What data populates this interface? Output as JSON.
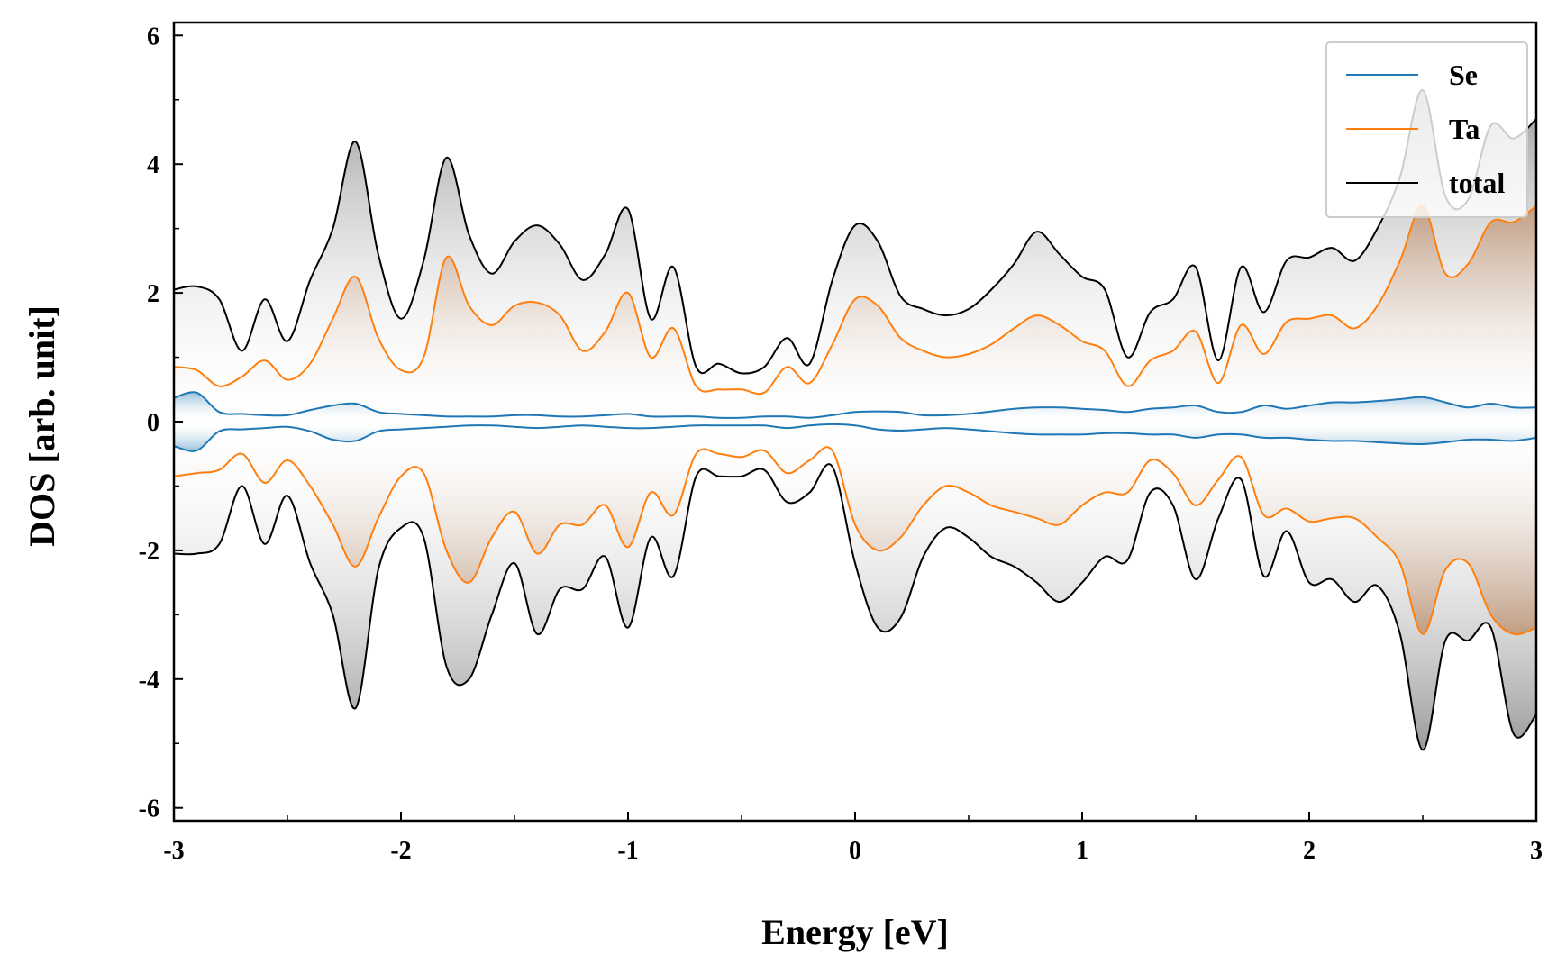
{
  "chart_data": {
    "type": "line",
    "title": "",
    "xlabel": "Energy [eV]",
    "ylabel": "DOS [arb. unit]",
    "xlim": [
      -3,
      3
    ],
    "ylim": [
      -6.2,
      6.2
    ],
    "x_ticks": [
      -3,
      -2,
      -1,
      0,
      1,
      2,
      3
    ],
    "x_tick_labels": [
      "-3",
      "-2",
      "-1",
      "0",
      "1",
      "2",
      "3"
    ],
    "y_ticks": [
      -6,
      -4,
      -2,
      0,
      2,
      4,
      6
    ],
    "y_tick_labels": [
      "-6",
      "-4",
      "-2",
      "0",
      "2",
      "4",
      "6"
    ],
    "legend_position": "top-right",
    "grid": false,
    "colors": {
      "Se": "#1f77b4",
      "Ta": "#ff7f0e",
      "total": "#000000"
    },
    "x": [
      -3.0,
      -2.9,
      -2.8,
      -2.7,
      -2.6,
      -2.5,
      -2.4,
      -2.3,
      -2.2,
      -2.1,
      -2.0,
      -1.9,
      -1.8,
      -1.7,
      -1.6,
      -1.5,
      -1.4,
      -1.3,
      -1.2,
      -1.1,
      -1.0,
      -0.9,
      -0.8,
      -0.7,
      -0.6,
      -0.5,
      -0.4,
      -0.3,
      -0.2,
      -0.1,
      0.0,
      0.1,
      0.2,
      0.3,
      0.4,
      0.5,
      0.6,
      0.7,
      0.8,
      0.9,
      1.0,
      1.1,
      1.2,
      1.3,
      1.4,
      1.5,
      1.6,
      1.7,
      1.8,
      1.9,
      2.0,
      2.1,
      2.2,
      2.3,
      2.4,
      2.5,
      2.6,
      2.7,
      2.8,
      2.9,
      3.0
    ],
    "series": [
      {
        "name": "Se",
        "up": [
          0.37,
          0.45,
          0.15,
          0.12,
          0.1,
          0.1,
          0.18,
          0.25,
          0.28,
          0.15,
          0.12,
          0.1,
          0.08,
          0.08,
          0.08,
          0.1,
          0.1,
          0.08,
          0.08,
          0.1,
          0.12,
          0.08,
          0.08,
          0.08,
          0.06,
          0.06,
          0.08,
          0.08,
          0.06,
          0.1,
          0.15,
          0.16,
          0.15,
          0.1,
          0.1,
          0.12,
          0.16,
          0.2,
          0.22,
          0.22,
          0.2,
          0.18,
          0.15,
          0.2,
          0.22,
          0.25,
          0.15,
          0.15,
          0.25,
          0.2,
          0.25,
          0.3,
          0.3,
          0.32,
          0.35,
          0.38,
          0.3,
          0.22,
          0.28,
          0.22,
          0.22
        ],
        "down": [
          -0.38,
          -0.45,
          -0.15,
          -0.12,
          -0.1,
          -0.08,
          -0.15,
          -0.28,
          -0.3,
          -0.15,
          -0.12,
          -0.1,
          -0.08,
          -0.06,
          -0.06,
          -0.08,
          -0.1,
          -0.08,
          -0.06,
          -0.08,
          -0.1,
          -0.1,
          -0.08,
          -0.06,
          -0.06,
          -0.06,
          -0.06,
          -0.1,
          -0.06,
          -0.04,
          -0.06,
          -0.12,
          -0.14,
          -0.12,
          -0.1,
          -0.12,
          -0.15,
          -0.18,
          -0.2,
          -0.2,
          -0.2,
          -0.18,
          -0.18,
          -0.2,
          -0.2,
          -0.25,
          -0.2,
          -0.2,
          -0.25,
          -0.25,
          -0.28,
          -0.3,
          -0.3,
          -0.32,
          -0.34,
          -0.35,
          -0.32,
          -0.28,
          -0.28,
          -0.3,
          -0.25
        ]
      },
      {
        "name": "Ta",
        "up": [
          0.85,
          0.8,
          0.55,
          0.7,
          0.95,
          0.65,
          0.9,
          1.6,
          2.25,
          1.3,
          0.8,
          1.0,
          2.55,
          1.8,
          1.5,
          1.8,
          1.85,
          1.65,
          1.1,
          1.4,
          2.0,
          1.0,
          1.45,
          0.55,
          0.5,
          0.5,
          0.45,
          0.85,
          0.6,
          1.2,
          1.9,
          1.8,
          1.3,
          1.1,
          1.0,
          1.05,
          1.2,
          1.45,
          1.65,
          1.5,
          1.25,
          1.1,
          0.55,
          0.95,
          1.1,
          1.4,
          0.6,
          1.5,
          1.05,
          1.55,
          1.6,
          1.65,
          1.45,
          1.8,
          2.5,
          3.35,
          2.3,
          2.45,
          3.1,
          3.1,
          3.35
        ],
        "down": [
          -0.85,
          -0.8,
          -0.75,
          -0.5,
          -0.95,
          -0.6,
          -1.0,
          -1.6,
          -2.25,
          -1.5,
          -0.85,
          -0.8,
          -2.0,
          -2.5,
          -1.8,
          -1.4,
          -2.05,
          -1.6,
          -1.6,
          -1.3,
          -1.95,
          -1.1,
          -1.45,
          -0.5,
          -0.5,
          -0.55,
          -0.45,
          -0.8,
          -0.6,
          -0.45,
          -1.6,
          -2.0,
          -1.8,
          -1.3,
          -1.0,
          -1.1,
          -1.3,
          -1.4,
          -1.5,
          -1.6,
          -1.3,
          -1.1,
          -1.1,
          -0.6,
          -0.8,
          -1.3,
          -0.9,
          -0.55,
          -1.45,
          -1.35,
          -1.55,
          -1.5,
          -1.5,
          -1.8,
          -2.2,
          -3.3,
          -2.3,
          -2.2,
          -3.0,
          -3.3,
          -3.2
        ]
      },
      {
        "name": "total",
        "up": [
          2.05,
          2.1,
          1.9,
          1.1,
          1.9,
          1.25,
          2.2,
          3.0,
          4.35,
          2.6,
          1.6,
          2.5,
          4.1,
          2.9,
          2.3,
          2.8,
          3.05,
          2.75,
          2.2,
          2.6,
          3.3,
          1.6,
          2.4,
          0.85,
          0.9,
          0.75,
          0.85,
          1.3,
          0.9,
          2.2,
          3.05,
          2.8,
          1.95,
          1.75,
          1.65,
          1.75,
          2.05,
          2.45,
          2.95,
          2.6,
          2.25,
          2.05,
          1.0,
          1.7,
          1.9,
          2.4,
          0.95,
          2.4,
          1.7,
          2.5,
          2.55,
          2.7,
          2.5,
          3.0,
          3.8,
          5.15,
          3.5,
          3.45,
          4.6,
          4.4,
          4.7
        ],
        "down": [
          -2.05,
          -2.05,
          -1.9,
          -1.0,
          -1.9,
          -1.15,
          -2.2,
          -3.0,
          -4.45,
          -2.3,
          -1.65,
          -1.8,
          -3.8,
          -4.0,
          -3.0,
          -2.2,
          -3.3,
          -2.6,
          -2.6,
          -2.1,
          -3.2,
          -1.8,
          -2.4,
          -0.85,
          -0.85,
          -0.85,
          -0.75,
          -1.25,
          -1.1,
          -0.7,
          -2.2,
          -3.2,
          -3.05,
          -2.1,
          -1.65,
          -1.8,
          -2.1,
          -2.25,
          -2.5,
          -2.8,
          -2.5,
          -2.1,
          -2.15,
          -1.1,
          -1.3,
          -2.45,
          -1.5,
          -0.9,
          -2.4,
          -1.7,
          -2.5,
          -2.45,
          -2.8,
          -2.55,
          -3.3,
          -5.1,
          -3.4,
          -3.4,
          -3.2,
          -4.85,
          -4.55
        ]
      }
    ]
  }
}
